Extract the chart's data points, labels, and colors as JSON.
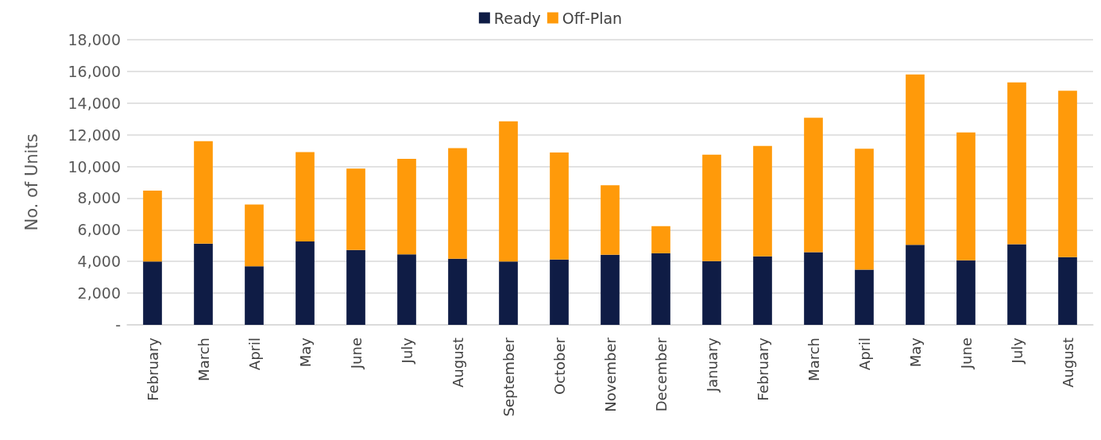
{
  "chart_data": {
    "type": "bar",
    "stacked": true,
    "ylabel": "No. of Units",
    "categories": [
      "February",
      "March",
      "April",
      "May",
      "June",
      "July",
      "August",
      "September",
      "October",
      "November",
      "December",
      "January",
      "February",
      "March",
      "April",
      "May",
      "June",
      "July",
      "August"
    ],
    "series": [
      {
        "name": "Ready",
        "color": "#0f1c45",
        "values": [
          4000,
          5130,
          3700,
          5270,
          4730,
          4450,
          4180,
          4000,
          4120,
          4420,
          4520,
          4020,
          4320,
          4590,
          3480,
          5050,
          4080,
          5090,
          4280
        ]
      },
      {
        "name": "Off-Plan",
        "color": "#ff9a0a",
        "values": [
          4470,
          6470,
          3900,
          5630,
          5140,
          6030,
          6980,
          8850,
          6760,
          4390,
          1710,
          6720,
          6980,
          8480,
          7640,
          10760,
          8070,
          10210,
          10500
        ]
      }
    ],
    "ylim": [
      0,
      18000
    ],
    "yticks": [
      {
        "value": 0,
        "label": "-"
      },
      {
        "value": 2000,
        "label": "2,000"
      },
      {
        "value": 4000,
        "label": "4,000"
      },
      {
        "value": 6000,
        "label": "6,000"
      },
      {
        "value": 8000,
        "label": "8,000"
      },
      {
        "value": 10000,
        "label": "10,000"
      },
      {
        "value": 12000,
        "label": "12,000"
      },
      {
        "value": 14000,
        "label": "14,000"
      },
      {
        "value": 16000,
        "label": "16,000"
      },
      {
        "value": 18000,
        "label": "18,000"
      }
    ],
    "grid": "y",
    "legend": "top"
  }
}
